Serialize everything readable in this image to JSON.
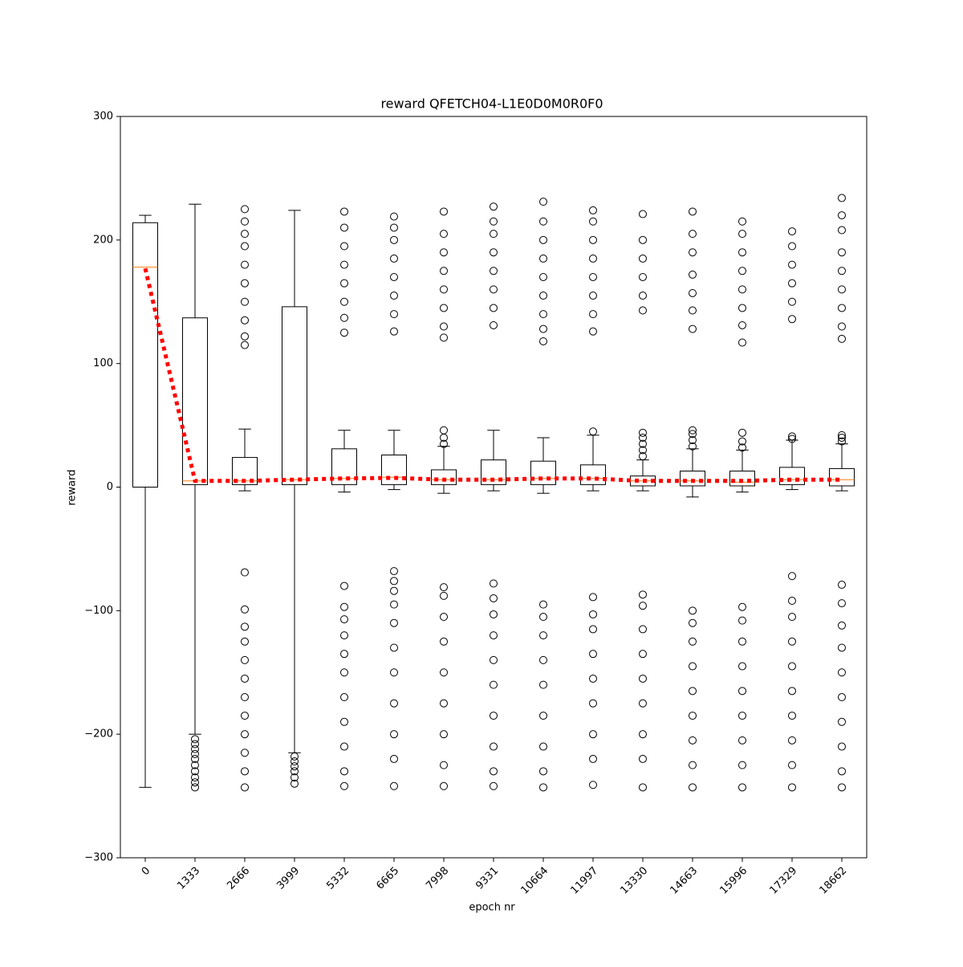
{
  "chart_data": {
    "type": "box",
    "title": "reward QFETCH04-L1E0D0M0R0F0",
    "xlabel": "epoch nr",
    "ylabel": "reward",
    "categories": [
      "0",
      "1333",
      "2666",
      "3999",
      "5332",
      "6665",
      "7998",
      "9331",
      "10664",
      "11997",
      "13330",
      "14663",
      "15996",
      "17329",
      "18662"
    ],
    "ylim": [
      -300,
      300
    ],
    "yticks": [
      {
        "value": -300,
        "label": "−300"
      },
      {
        "value": -200,
        "label": "−200"
      },
      {
        "value": -100,
        "label": "−100"
      },
      0,
      100,
      200,
      300
    ],
    "box_color": "#000000",
    "median_color": "#ff7f0e",
    "mean_color": "#ff0000",
    "boxes": [
      {
        "whislo": -243,
        "q1": 0,
        "med": 178,
        "q3": 214,
        "whishi": 220,
        "fliers": []
      },
      {
        "whislo": -200,
        "q1": 2,
        "med": 5,
        "q3": 137,
        "whishi": 229,
        "fliers": [
          -204,
          -208,
          -212,
          -216,
          -220,
          -225,
          -230,
          -235,
          -239,
          -243
        ]
      },
      {
        "whislo": -3,
        "q1": 2,
        "med": 5,
        "q3": 24,
        "whishi": 47,
        "fliers": [
          115,
          122,
          135,
          150,
          165,
          180,
          195,
          205,
          215,
          225,
          -69,
          -99,
          -113,
          -125,
          -140,
          -155,
          -170,
          -185,
          -200,
          -215,
          -230,
          -243
        ]
      },
      {
        "whislo": -215,
        "q1": 2,
        "med": 6,
        "q3": 146,
        "whishi": 224,
        "fliers": [
          -218,
          -222,
          -226,
          -230,
          -235,
          -240
        ]
      },
      {
        "whislo": -4,
        "q1": 2,
        "med": 7,
        "q3": 31,
        "whishi": 46,
        "fliers": [
          125,
          137,
          150,
          165,
          180,
          195,
          210,
          223,
          -80,
          -97,
          -107,
          -120,
          -135,
          -150,
          -170,
          -190,
          -210,
          -230,
          -242
        ]
      },
      {
        "whislo": -2,
        "q1": 2,
        "med": 8,
        "q3": 26,
        "whishi": 46,
        "fliers": [
          126,
          140,
          155,
          170,
          185,
          200,
          210,
          219,
          -68,
          -76,
          -84,
          -95,
          -110,
          -130,
          -150,
          -175,
          -200,
          -220,
          -242
        ]
      },
      {
        "whislo": -5,
        "q1": 2,
        "med": 6,
        "q3": 14,
        "whishi": 33,
        "fliers": [
          35,
          40,
          46,
          121,
          130,
          145,
          160,
          175,
          190,
          205,
          223,
          -81,
          -88,
          -105,
          -125,
          -150,
          -175,
          -200,
          -225,
          -242
        ]
      },
      {
        "whislo": -3,
        "q1": 2,
        "med": 6,
        "q3": 22,
        "whishi": 46,
        "fliers": [
          131,
          145,
          160,
          175,
          190,
          205,
          215,
          227,
          -78,
          -90,
          -103,
          -120,
          -140,
          -160,
          -185,
          -210,
          -230,
          -242
        ]
      },
      {
        "whislo": -5,
        "q1": 2,
        "med": 7,
        "q3": 21,
        "whishi": 40,
        "fliers": [
          118,
          128,
          140,
          155,
          170,
          185,
          200,
          215,
          231,
          -95,
          -105,
          -120,
          -140,
          -160,
          -185,
          -210,
          -230,
          -243
        ]
      },
      {
        "whislo": -3,
        "q1": 2,
        "med": 7,
        "q3": 18,
        "whishi": 42,
        "fliers": [
          45,
          126,
          140,
          155,
          170,
          185,
          200,
          215,
          224,
          -89,
          -103,
          -115,
          -135,
          -155,
          -175,
          -200,
          -220,
          -241
        ]
      },
      {
        "whislo": -3,
        "q1": 1,
        "med": 5,
        "q3": 9,
        "whishi": 22,
        "fliers": [
          25,
          30,
          35,
          40,
          44,
          143,
          155,
          170,
          185,
          200,
          221,
          -87,
          -96,
          -115,
          -135,
          -155,
          -175,
          -200,
          -220,
          -243
        ]
      },
      {
        "whislo": -8,
        "q1": 1,
        "med": 5,
        "q3": 13,
        "whishi": 31,
        "fliers": [
          33,
          38,
          43,
          46,
          128,
          143,
          157,
          172,
          190,
          205,
          223,
          -100,
          -110,
          -125,
          -145,
          -165,
          -185,
          -205,
          -225,
          -243
        ]
      },
      {
        "whislo": -4,
        "q1": 1,
        "med": 4,
        "q3": 13,
        "whishi": 30,
        "fliers": [
          32,
          37,
          44,
          117,
          131,
          145,
          160,
          175,
          190,
          205,
          215,
          -97,
          -108,
          -125,
          -145,
          -165,
          -185,
          -205,
          -225,
          -243
        ]
      },
      {
        "whislo": -2,
        "q1": 2,
        "med": 6,
        "q3": 16,
        "whishi": 38,
        "fliers": [
          39,
          41,
          136,
          150,
          165,
          180,
          195,
          207,
          -72,
          -92,
          -105,
          -125,
          -145,
          -165,
          -185,
          -205,
          -225,
          -243
        ]
      },
      {
        "whislo": -3,
        "q1": 1,
        "med": 6,
        "q3": 15,
        "whishi": 35,
        "fliers": [
          37,
          40,
          42,
          120,
          130,
          145,
          160,
          175,
          190,
          208,
          220,
          234,
          -79,
          -94,
          -112,
          -130,
          -150,
          -170,
          -190,
          -210,
          -230,
          -243
        ]
      }
    ],
    "means": [
      177,
      5,
      5,
      6,
      7,
      7.5,
      6,
      6,
      7,
      7,
      5,
      5,
      5,
      6,
      6
    ]
  }
}
